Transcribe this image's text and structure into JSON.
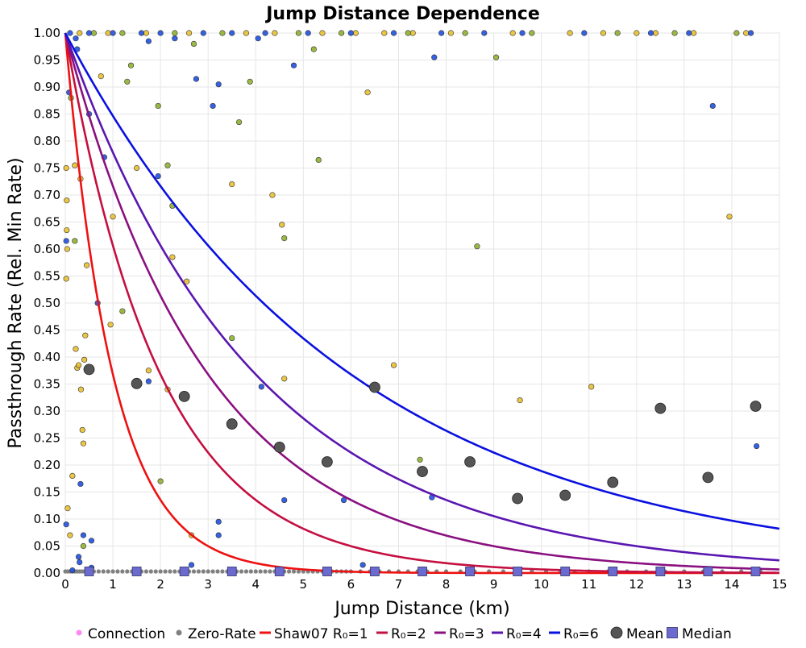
{
  "chart_data": {
    "type": "scatter",
    "title": "Jump Distance Dependence",
    "xlabel": "Jump Distance (km)",
    "ylabel": "Passthrough Rate (Rel. Min Rate)",
    "xlim": [
      0,
      15
    ],
    "ylim": [
      0,
      1
    ],
    "xticks": [
      "0",
      "1",
      "2",
      "3",
      "4",
      "5",
      "6",
      "7",
      "8",
      "9",
      "10",
      "11",
      "12",
      "13",
      "14",
      "15"
    ],
    "yticks": [
      "0.00",
      "0.05",
      "0.10",
      "0.15",
      "0.20",
      "0.25",
      "0.30",
      "0.35",
      "0.40",
      "0.45",
      "0.50",
      "0.55",
      "0.60",
      "0.65",
      "0.70",
      "0.75",
      "0.80",
      "0.85",
      "0.90",
      "0.95",
      "1.00"
    ],
    "grid": true,
    "legend_position": "bottom",
    "legend": [
      "Connection",
      "Zero-Rate",
      "Shaw07 R₀=1",
      "R₀=2",
      "R₀=3",
      "R₀=4",
      "R₀=6",
      "Mean",
      "Median"
    ],
    "colors": {
      "connection": "#ff88ee",
      "zero_rate": "#808080",
      "yellow_points": "#e8c030",
      "green_points": "#90b030",
      "blue_points": "#2050e0",
      "mean": "#555555",
      "median": "#6a6ad0",
      "curves": [
        "#ee1111",
        "#c40f40",
        "#8a1080",
        "#5a16b0",
        "#0a10e0"
      ]
    },
    "curves": [
      {
        "label": "Shaw07 R₀=1",
        "R0": 1,
        "formula": "exp(-x/R0)"
      },
      {
        "label": "R₀=2",
        "R0": 2,
        "formula": "exp(-x/R0)"
      },
      {
        "label": "R₀=3",
        "R0": 3,
        "formula": "exp(-x/R0)"
      },
      {
        "label": "R₀=4",
        "R0": 4,
        "formula": "exp(-x/R0)"
      },
      {
        "label": "R₀=6",
        "R0": 6,
        "formula": "exp(-x/R0)"
      }
    ],
    "mean": {
      "x": [
        0.5,
        1.5,
        2.5,
        3.5,
        4.5,
        5.5,
        6.5,
        7.5,
        8.5,
        9.5,
        10.5,
        11.5,
        12.5,
        13.5,
        14.5
      ],
      "y": [
        0.377,
        0.351,
        0.327,
        0.276,
        0.233,
        0.206,
        0.344,
        0.188,
        0.206,
        0.138,
        0.144,
        0.168,
        0.305,
        0.177,
        0.309
      ]
    },
    "median": {
      "x": [
        0.5,
        1.5,
        2.5,
        3.5,
        4.5,
        5.5,
        6.5,
        7.5,
        8.5,
        9.5,
        10.5,
        11.5,
        12.5,
        13.5,
        14.5
      ],
      "y": [
        0.003,
        0.003,
        0.003,
        0.003,
        0.003,
        0.003,
        0.003,
        0.003,
        0.003,
        0.003,
        0.003,
        0.003,
        0.003,
        0.003,
        0.003
      ]
    },
    "points_yellow": [
      [
        0.02,
        0.75
      ],
      [
        0.03,
        0.69
      ],
      [
        0.03,
        0.635
      ],
      [
        0.04,
        0.6
      ],
      [
        0.02,
        0.545
      ],
      [
        0.05,
        0.12
      ],
      [
        0.1,
        0.07
      ],
      [
        0.15,
        0.18
      ],
      [
        0.2,
        0.755
      ],
      [
        0.22,
        0.415
      ],
      [
        0.25,
        0.38
      ],
      [
        0.28,
        0.385
      ],
      [
        0.32,
        0.73
      ],
      [
        0.33,
        0.34
      ],
      [
        0.36,
        0.265
      ],
      [
        0.38,
        0.24
      ],
      [
        0.4,
        0.395
      ],
      [
        0.42,
        0.44
      ],
      [
        0.45,
        0.57
      ],
      [
        0.75,
        0.92
      ],
      [
        0.95,
        0.46
      ],
      [
        1.0,
        0.66
      ],
      [
        1.5,
        0.75
      ],
      [
        1.75,
        0.375
      ],
      [
        2.15,
        0.34
      ],
      [
        2.25,
        0.585
      ],
      [
        2.45,
        0.325
      ],
      [
        2.55,
        0.54
      ],
      [
        2.65,
        0.07
      ],
      [
        3.5,
        0.72
      ],
      [
        4.35,
        0.7
      ],
      [
        4.55,
        0.645
      ],
      [
        4.6,
        0.36
      ],
      [
        6.35,
        0.89
      ],
      [
        6.9,
        0.385
      ],
      [
        9.55,
        0.32
      ],
      [
        11.05,
        0.345
      ],
      [
        13.95,
        0.66
      ],
      [
        0.3,
        1.0
      ],
      [
        0.9,
        1.0
      ],
      [
        1.7,
        1.0
      ],
      [
        2.6,
        1.0
      ],
      [
        3.8,
        1.0
      ],
      [
        4.4,
        1.0
      ],
      [
        5.4,
        1.0
      ],
      [
        6.1,
        1.0
      ],
      [
        6.7,
        1.0
      ],
      [
        7.3,
        1.0
      ],
      [
        8.1,
        1.0
      ],
      [
        9.4,
        1.0
      ],
      [
        10.6,
        1.0
      ],
      [
        11.3,
        1.0
      ],
      [
        12.0,
        1.0
      ],
      [
        12.4,
        1.0
      ],
      [
        13.2,
        1.0
      ],
      [
        14.3,
        1.0
      ]
    ],
    "points_green": [
      [
        0.12,
        0.88
      ],
      [
        0.2,
        0.615
      ],
      [
        0.38,
        0.05
      ],
      [
        1.2,
        0.485
      ],
      [
        1.3,
        0.91
      ],
      [
        1.38,
        0.94
      ],
      [
        1.95,
        0.865
      ],
      [
        2.0,
        0.17
      ],
      [
        2.15,
        0.755
      ],
      [
        2.25,
        0.68
      ],
      [
        2.7,
        0.98
      ],
      [
        3.65,
        0.835
      ],
      [
        3.88,
        0.91
      ],
      [
        3.5,
        0.435
      ],
      [
        5.22,
        0.97
      ],
      [
        5.32,
        0.765
      ],
      [
        4.6,
        0.62
      ],
      [
        7.45,
        0.21
      ],
      [
        8.65,
        0.605
      ],
      [
        9.05,
        0.955
      ],
      [
        0.6,
        1.0
      ],
      [
        1.2,
        1.0
      ],
      [
        2.3,
        1.0
      ],
      [
        3.3,
        1.0
      ],
      [
        4.9,
        1.0
      ],
      [
        5.8,
        1.0
      ],
      [
        7.2,
        1.0
      ],
      [
        8.4,
        1.0
      ],
      [
        9.8,
        1.0
      ],
      [
        11.6,
        1.0
      ],
      [
        12.8,
        1.0
      ],
      [
        14.1,
        1.0
      ]
    ],
    "points_blue": [
      [
        0.02,
        0.615
      ],
      [
        0.02,
        0.09
      ],
      [
        0.08,
        0.89
      ],
      [
        0.15,
        0.005
      ],
      [
        0.22,
        0.99
      ],
      [
        0.25,
        0.97
      ],
      [
        0.28,
        0.03
      ],
      [
        0.3,
        0.02
      ],
      [
        0.32,
        0.165
      ],
      [
        0.38,
        0.07
      ],
      [
        0.5,
        0.85
      ],
      [
        0.55,
        0.06
      ],
      [
        0.55,
        0.01
      ],
      [
        0.68,
        0.5
      ],
      [
        0.82,
        0.77
      ],
      [
        1.75,
        0.355
      ],
      [
        1.75,
        0.985
      ],
      [
        1.95,
        0.735
      ],
      [
        2.3,
        0.99
      ],
      [
        2.75,
        0.915
      ],
      [
        2.65,
        0.015
      ],
      [
        3.1,
        0.865
      ],
      [
        3.22,
        0.905
      ],
      [
        3.22,
        0.07
      ],
      [
        3.22,
        0.095
      ],
      [
        4.05,
        0.99
      ],
      [
        4.12,
        0.345
      ],
      [
        4.6,
        0.135
      ],
      [
        4.8,
        0.94
      ],
      [
        5.85,
        0.135
      ],
      [
        6.25,
        0.015
      ],
      [
        7.75,
        0.955
      ],
      [
        7.7,
        0.14
      ],
      [
        13.6,
        0.865
      ],
      [
        14.52,
        0.235
      ],
      [
        0.1,
        1.0
      ],
      [
        0.5,
        1.0
      ],
      [
        1.0,
        1.0
      ],
      [
        1.6,
        1.0
      ],
      [
        2.0,
        1.0
      ],
      [
        2.9,
        1.0
      ],
      [
        3.5,
        1.0
      ],
      [
        4.2,
        1.0
      ],
      [
        5.1,
        1.0
      ],
      [
        6.0,
        1.0
      ],
      [
        6.9,
        1.0
      ],
      [
        7.9,
        1.0
      ],
      [
        8.8,
        1.0
      ],
      [
        9.6,
        1.0
      ],
      [
        10.9,
        1.0
      ],
      [
        12.3,
        1.0
      ],
      [
        13.1,
        1.0
      ],
      [
        14.4,
        1.0
      ]
    ],
    "zero_rate_x": [
      0.0,
      0.05,
      0.1,
      0.15,
      0.2,
      0.25,
      0.3,
      0.35,
      0.4,
      0.45,
      0.5,
      0.6,
      0.7,
      0.8,
      0.9,
      1.0,
      1.1,
      1.2,
      1.3,
      1.4,
      1.5,
      1.6,
      1.7,
      1.8,
      1.9,
      2.0,
      2.1,
      2.2,
      2.3,
      2.4,
      2.5,
      2.6,
      2.7,
      2.8,
      2.9,
      3.0,
      3.1,
      3.2,
      3.3,
      3.4,
      3.5,
      3.6,
      3.7,
      3.8,
      3.9,
      4.0,
      4.1,
      4.2,
      4.3,
      4.4,
      4.5,
      4.6,
      4.7,
      4.8,
      4.9,
      5.0,
      5.1,
      5.2,
      5.3,
      5.4,
      5.5,
      5.6,
      5.7,
      5.8,
      5.9,
      6.0,
      6.2,
      6.4,
      6.6,
      6.8,
      7.0,
      7.2,
      7.4,
      7.6,
      7.8,
      8.0,
      8.3,
      8.6,
      8.9,
      9.2,
      9.5,
      9.8,
      10.1,
      10.4,
      10.7,
      11.0,
      11.4,
      11.8,
      12.2,
      12.6,
      13.0,
      13.4,
      13.8,
      14.2,
      14.6
    ]
  }
}
